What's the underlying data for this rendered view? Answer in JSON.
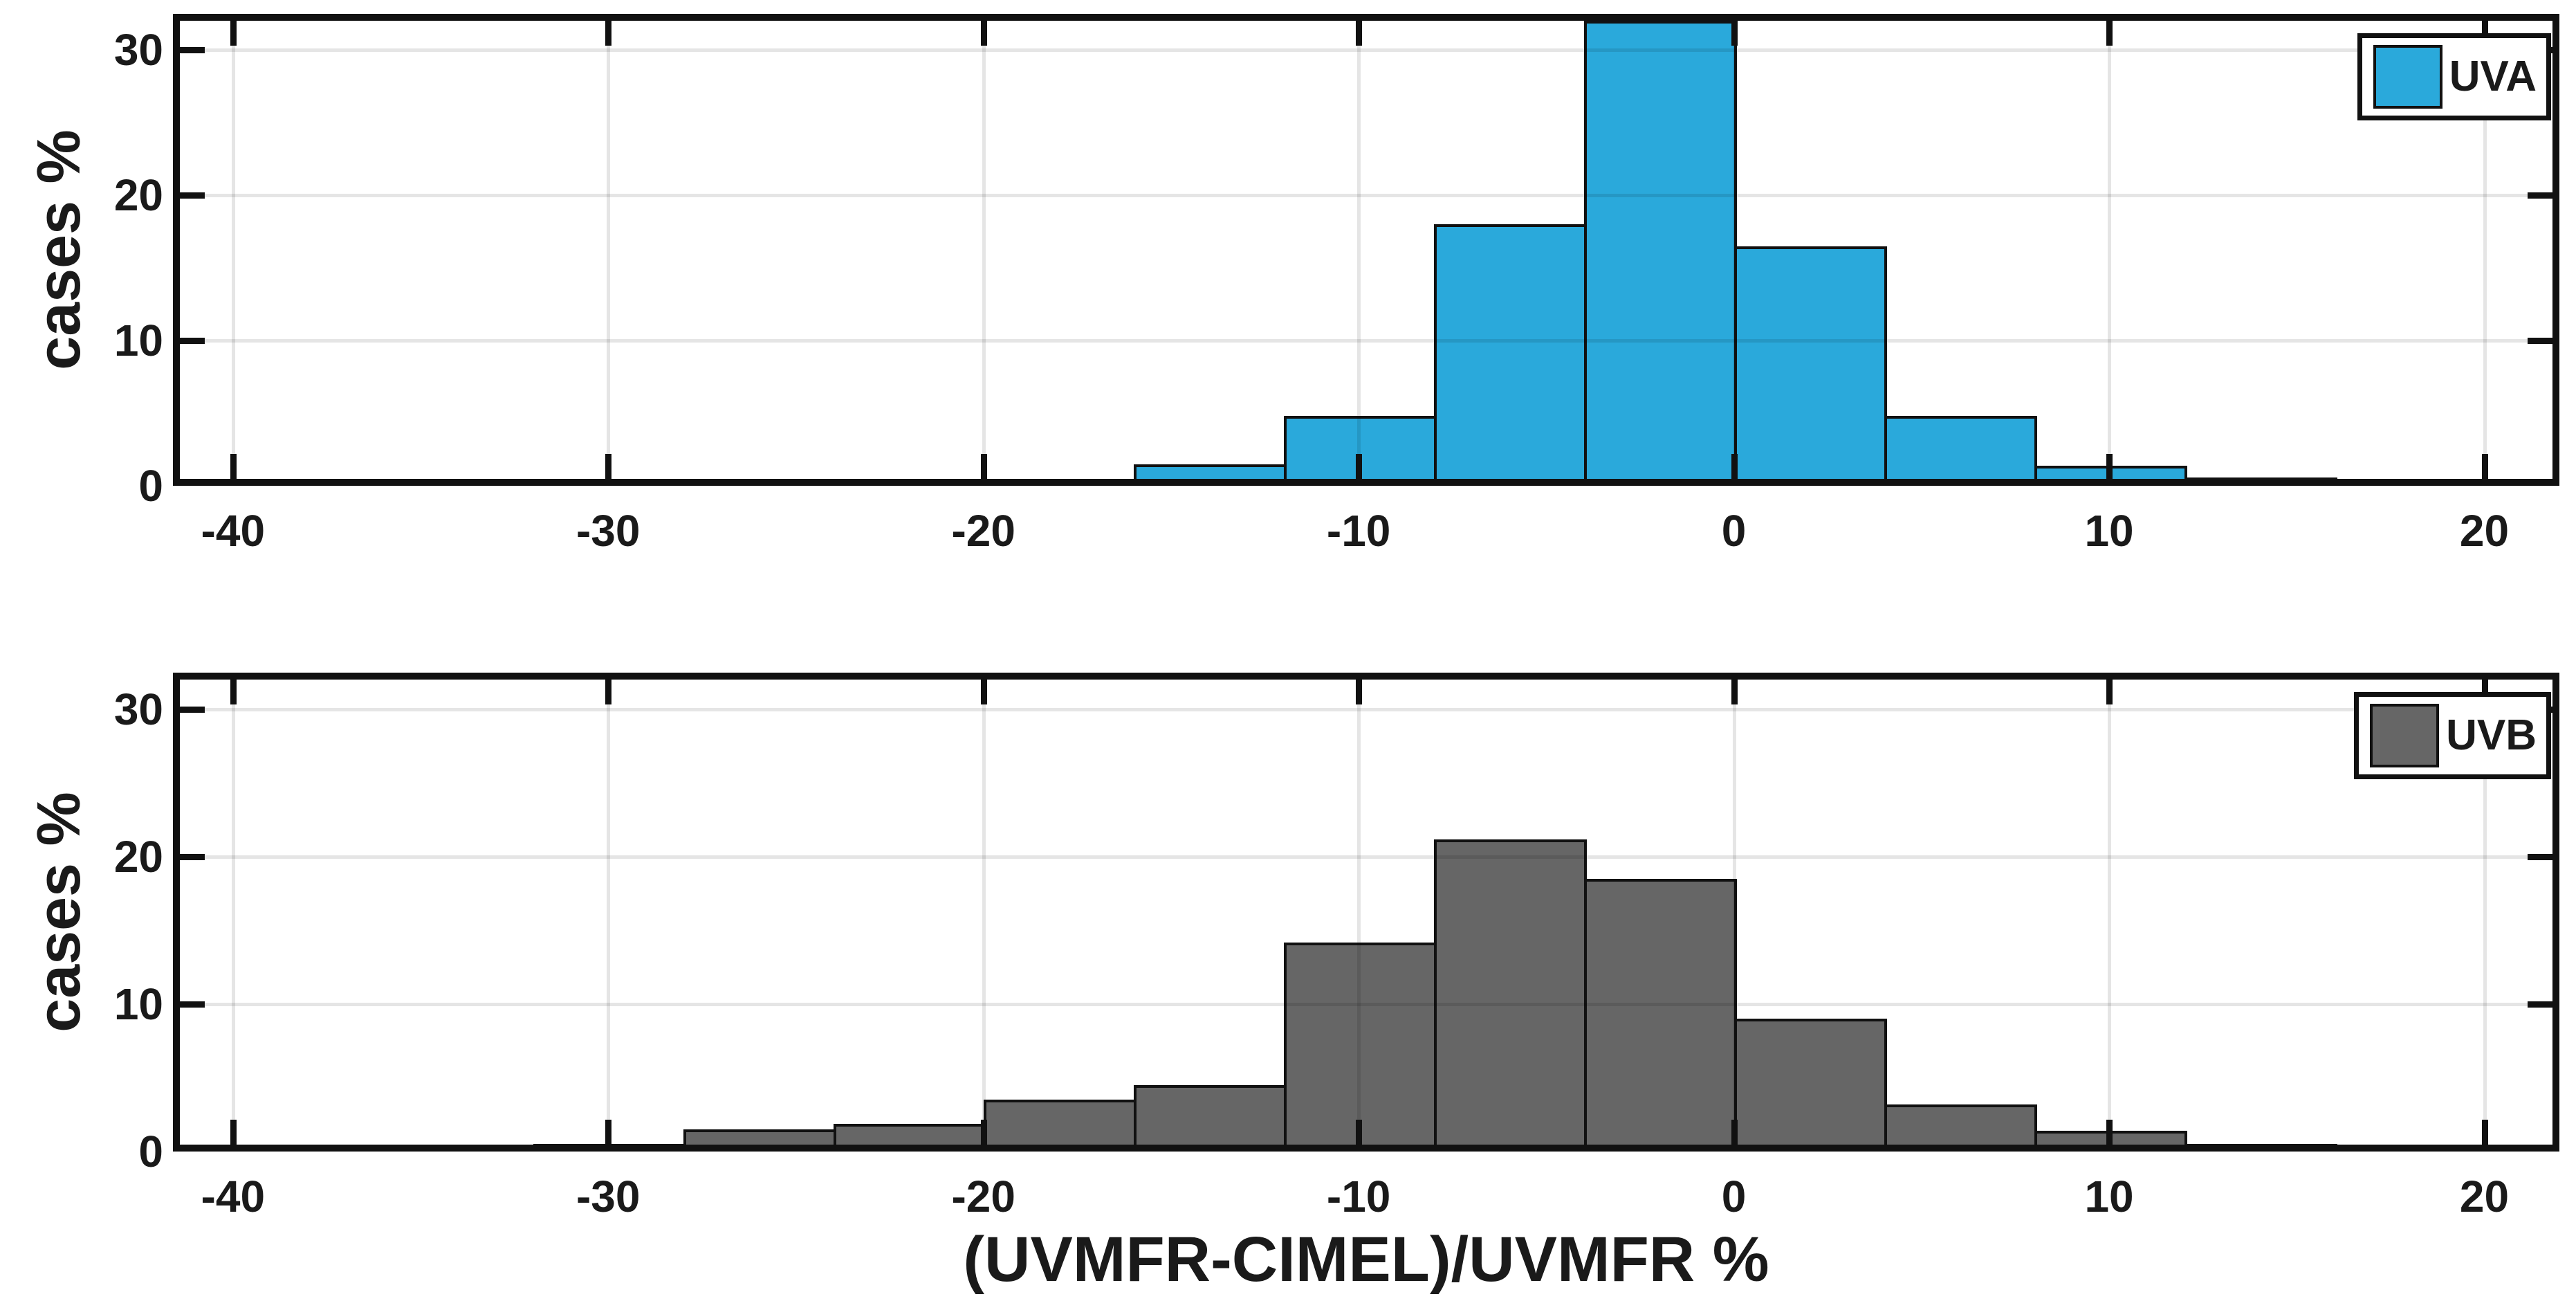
{
  "figure": {
    "xlabel": "(UVMFR-CIMEL)/UVMFR %",
    "ylabel": "cases %",
    "background": "#ffffff",
    "text_color": "#1a1a1a",
    "axis_color": "#111111",
    "grid_visible": true,
    "grid_position": "all x and y ticks except 0",
    "x_ticks": [
      -40,
      -30,
      -20,
      -10,
      0,
      10,
      20
    ],
    "y_ticks": [
      0,
      10,
      20,
      30
    ],
    "xlim": [
      -41.6,
      22.0
    ],
    "ylim": [
      0,
      32.5
    ]
  },
  "chart_data": [
    {
      "type": "bar",
      "variant": "histogram",
      "series": "UVA",
      "legend_label": "UVA",
      "legend_position": "top-right",
      "color": "#2AA9DB",
      "edge_color": "#111111",
      "xlabel": "",
      "ylabel": "cases %",
      "bin_edges": [
        -28,
        -24,
        -20,
        -16,
        -12,
        -8,
        -4,
        0,
        4,
        8,
        12,
        16,
        20
      ],
      "values": [
        0.3,
        0.4,
        0.45,
        1.5,
        4.8,
        18.0,
        32.0,
        16.5,
        4.8,
        1.4,
        0.55,
        0.3
      ]
    },
    {
      "type": "bar",
      "variant": "histogram",
      "series": "UVB",
      "legend_label": "UVB",
      "legend_position": "top-right",
      "color": "#666666",
      "edge_color": "#111111",
      "xlabel": "(UVMFR-CIMEL)/UVMFR %",
      "ylabel": "cases %",
      "bin_edges": [
        -32,
        -28,
        -24,
        -20,
        -16,
        -12,
        -8,
        -4,
        0,
        4,
        8,
        12,
        16,
        20
      ],
      "values": [
        0.5,
        1.5,
        1.9,
        3.5,
        4.5,
        14.2,
        21.2,
        18.5,
        9.0,
        3.2,
        1.4,
        0.5,
        0.25
      ]
    }
  ]
}
